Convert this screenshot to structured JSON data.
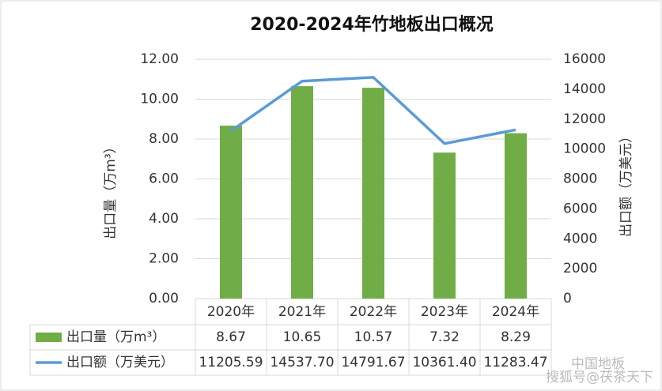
{
  "chart_data": {
    "type": "bar-line-table",
    "title": "2020-2024年竹地板出口概况",
    "y_label": "出口量（万m³）",
    "y2_label": "出口额（万美元）",
    "categories": [
      "2020年",
      "2021年",
      "2022年",
      "2023年",
      "2024年"
    ],
    "series": [
      {
        "name": "出口量（万m³）",
        "type": "bar",
        "color": "#70ad47",
        "values": [
          8.67,
          10.65,
          10.57,
          7.32,
          8.29
        ]
      },
      {
        "name": "出口额（万美元）",
        "type": "line",
        "axis": "y2",
        "color": "#5b9bd5",
        "values": [
          11205.59,
          14537.7,
          14791.67,
          10361.4,
          11283.47
        ],
        "value_labels": [
          "11205.59",
          "14537.70",
          "14791.67",
          "10361.40",
          "11283.47"
        ]
      }
    ],
    "ylim": [
      0,
      12
    ],
    "yticks": [
      {
        "value": 0,
        "label": "0.00"
      },
      {
        "value": 2,
        "label": "2.00"
      },
      {
        "value": 4,
        "label": "4.00"
      },
      {
        "value": 6,
        "label": "6.00"
      },
      {
        "value": 8,
        "label": "8.00"
      },
      {
        "value": 10,
        "label": "10.00"
      },
      {
        "value": 12,
        "label": "12.00"
      }
    ],
    "y2lim": [
      0,
      16000
    ],
    "y2ticks": [
      0,
      2000,
      4000,
      6000,
      8000,
      10000,
      12000,
      14000,
      16000
    ],
    "grid": true,
    "watermarks": [
      "中国地板",
      "搜狐号@茯茶天下"
    ]
  }
}
